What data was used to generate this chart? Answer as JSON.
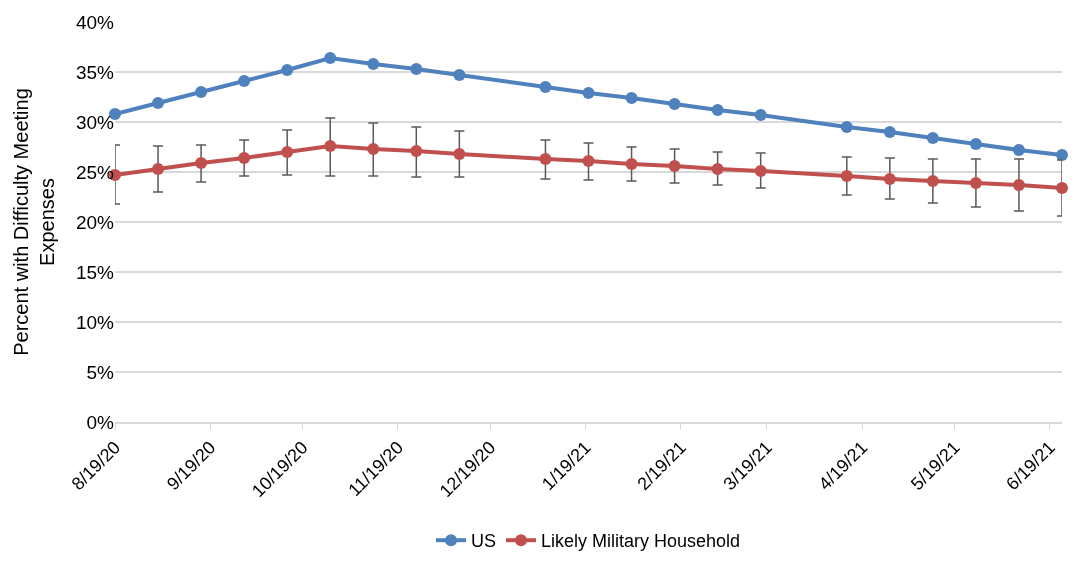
{
  "chart_data": {
    "type": "line",
    "ylabel": "Percent with Difficulty Meeting Expenses",
    "x": [
      "2020-08-19",
      "2020-09-02",
      "2020-09-16",
      "2020-09-30",
      "2020-10-14",
      "2020-10-28",
      "2020-11-11",
      "2020-11-25",
      "2020-12-09",
      "2021-01-06",
      "2021-01-20",
      "2021-02-03",
      "2021-02-17",
      "2021-03-03",
      "2021-03-17",
      "2021-04-14",
      "2021-04-28",
      "2021-05-12",
      "2021-05-26",
      "2021-06-09",
      "2021-06-23"
    ],
    "series": [
      {
        "name": "US",
        "color": "#4f81bd",
        "values": [
          30.8,
          31.9,
          33.0,
          34.1,
          35.2,
          36.4,
          35.8,
          35.3,
          34.7,
          33.5,
          32.9,
          32.4,
          31.8,
          31.2,
          30.7,
          29.5,
          29.0,
          28.4,
          27.8,
          27.2,
          26.7
        ]
      },
      {
        "name": "Likely Military Household",
        "color": "#c0504d",
        "values": [
          24.7,
          25.3,
          25.9,
          26.4,
          27.0,
          27.6,
          27.3,
          27.1,
          26.8,
          26.3,
          26.1,
          25.8,
          25.6,
          25.3,
          25.1,
          24.6,
          24.3,
          24.1,
          23.9,
          23.7,
          23.4
        ],
        "errors": [
          [
            21.8,
            27.7
          ],
          [
            23.0,
            27.6
          ],
          [
            24.0,
            27.7
          ],
          [
            24.6,
            28.2
          ],
          [
            24.7,
            29.2
          ],
          [
            24.6,
            30.4
          ],
          [
            24.6,
            29.9
          ],
          [
            24.5,
            29.5
          ],
          [
            24.5,
            29.1
          ],
          [
            24.3,
            28.2
          ],
          [
            24.2,
            27.9
          ],
          [
            24.1,
            27.5
          ],
          [
            23.9,
            27.3
          ],
          [
            23.7,
            27.0
          ],
          [
            23.4,
            26.9
          ],
          [
            22.7,
            26.5
          ],
          [
            22.3,
            26.4
          ],
          [
            21.9,
            26.3
          ],
          [
            21.5,
            26.3
          ],
          [
            21.1,
            26.3
          ],
          [
            20.6,
            26.2
          ]
        ]
      }
    ],
    "xlim": [
      "2020-08-19",
      "2021-06-23"
    ],
    "xticks": [
      {
        "value": "2020-08-19",
        "label": "8/19/20"
      },
      {
        "value": "2020-09-19",
        "label": "9/19/20"
      },
      {
        "value": "2020-10-19",
        "label": "10/19/20"
      },
      {
        "value": "2020-11-19",
        "label": "11/19/20"
      },
      {
        "value": "2020-12-19",
        "label": "12/19/20"
      },
      {
        "value": "2021-01-19",
        "label": "1/19/21"
      },
      {
        "value": "2021-02-19",
        "label": "2/19/21"
      },
      {
        "value": "2021-03-19",
        "label": "3/19/21"
      },
      {
        "value": "2021-04-19",
        "label": "4/19/21"
      },
      {
        "value": "2021-05-19",
        "label": "5/19/21"
      },
      {
        "value": "2021-06-19",
        "label": "6/19/21"
      }
    ],
    "ylim": [
      0,
      40
    ],
    "yticks": [
      {
        "value": 0,
        "label": "0%"
      },
      {
        "value": 5,
        "label": "5%"
      },
      {
        "value": 10,
        "label": "10%"
      },
      {
        "value": 15,
        "label": "15%"
      },
      {
        "value": 20,
        "label": "20%"
      },
      {
        "value": 25,
        "label": "25%"
      },
      {
        "value": 30,
        "label": "30%"
      },
      {
        "value": 35,
        "label": "35%"
      },
      {
        "value": 40,
        "label": "40%"
      }
    ],
    "grid": "y",
    "legend": "bottom",
    "marker": "circle",
    "line_style": "solid"
  }
}
